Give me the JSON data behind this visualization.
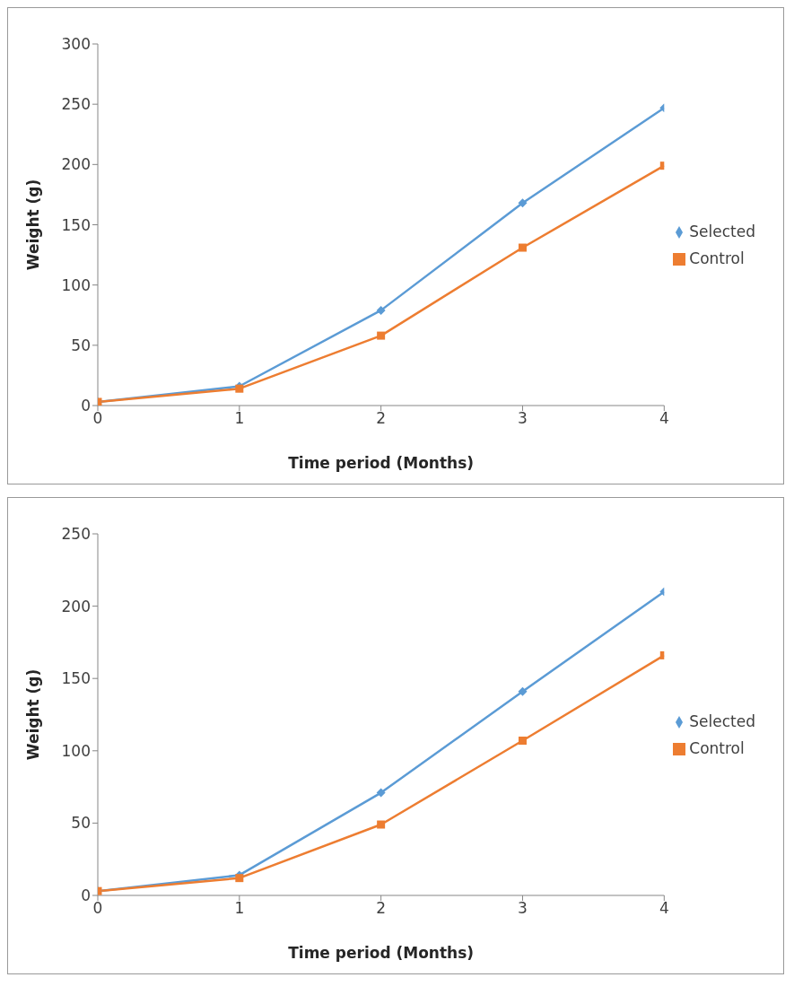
{
  "chart_data": [
    {
      "type": "line",
      "xlabel": "Time period (Months)",
      "ylabel": "Weight (g)",
      "x": [
        0,
        1,
        2,
        3,
        4
      ],
      "xlim": [
        0,
        4
      ],
      "xticks": [
        0,
        1,
        2,
        3,
        4
      ],
      "ylim": [
        0,
        300
      ],
      "yticks": [
        0,
        50,
        100,
        150,
        200,
        250,
        300
      ],
      "grid": false,
      "legend": "right",
      "series": [
        {
          "name": "Selected",
          "color": "#5b9bd5",
          "marker": "diamond",
          "values": [
            3,
            16,
            79,
            168,
            247
          ]
        },
        {
          "name": "Control",
          "color": "#ed7d31",
          "marker": "square",
          "values": [
            3,
            14,
            58,
            131,
            199
          ]
        }
      ]
    },
    {
      "type": "line",
      "xlabel": "Time period (Months)",
      "ylabel": "Weight (g)",
      "x": [
        0,
        1,
        2,
        3,
        4
      ],
      "xlim": [
        0,
        4
      ],
      "xticks": [
        0,
        1,
        2,
        3,
        4
      ],
      "ylim": [
        0,
        250
      ],
      "yticks": [
        0,
        50,
        100,
        150,
        200,
        250
      ],
      "grid": false,
      "legend": "right",
      "series": [
        {
          "name": "Selected",
          "color": "#5b9bd5",
          "marker": "diamond",
          "values": [
            3,
            14,
            71,
            141,
            210
          ]
        },
        {
          "name": "Control",
          "color": "#ed7d31",
          "marker": "square",
          "values": [
            3,
            12,
            49,
            107,
            166
          ]
        }
      ]
    }
  ]
}
